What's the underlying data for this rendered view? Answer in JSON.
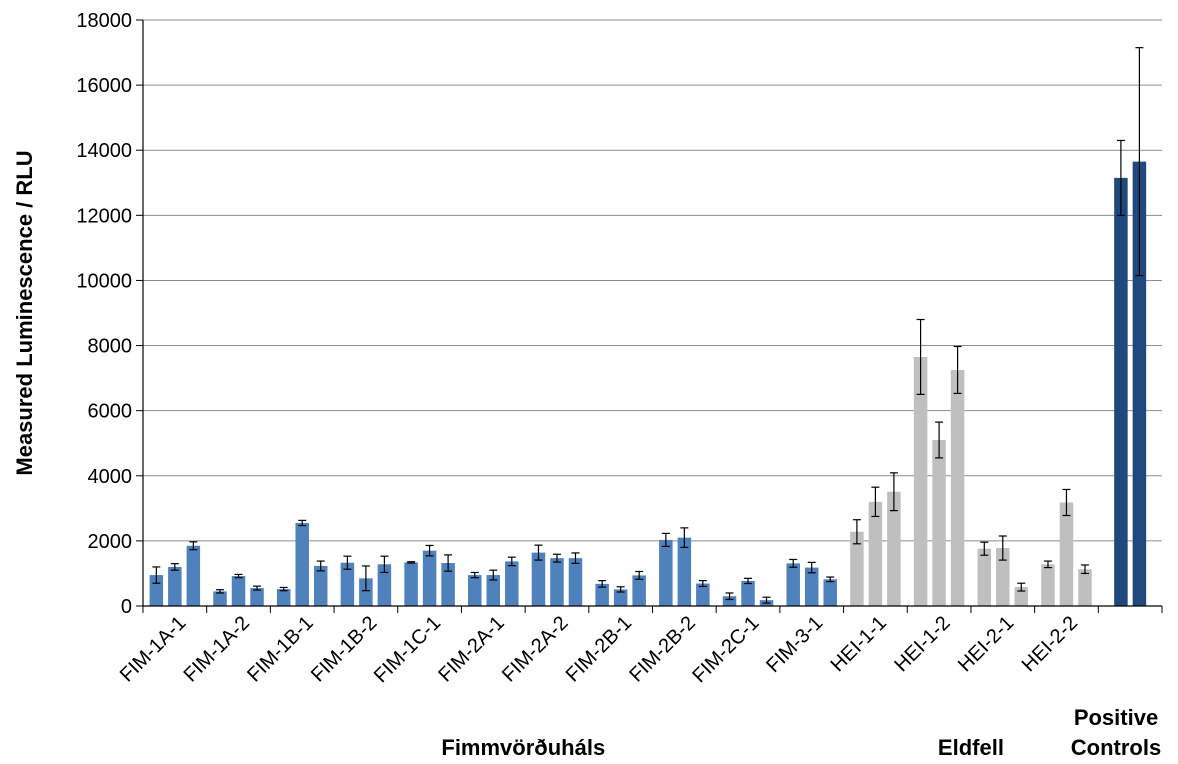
{
  "chart_data": {
    "type": "bar",
    "ylabel": "Measured Luminescence / RLU",
    "ylim": [
      0,
      18000
    ],
    "yticks": [
      0,
      2000,
      4000,
      6000,
      8000,
      10000,
      12000,
      14000,
      16000,
      18000
    ],
    "grid": true,
    "categories": [
      "FIM-1A-1",
      "FIM-1A-2",
      "FIM-1B-1",
      "FIM-1B-2",
      "FIM-1C-1",
      "FIM-2A-1",
      "FIM-2A-2",
      "FIM-2B-1",
      "FIM-2B-2",
      "FIM-2C-1",
      "FIM-3-1",
      "HEI-1-1",
      "HEI-1-2",
      "HEI-2-1",
      "HEI-2-2",
      ""
    ],
    "groups": [
      {
        "label": "Fimmvörðuháls",
        "from": 0,
        "to": 10,
        "color": "#4f81bd"
      },
      {
        "label": "Eldfell",
        "from": 11,
        "to": 14,
        "color": "#bfbfbf"
      },
      {
        "label_lines": [
          "Positive",
          "Controls"
        ],
        "from": 15,
        "to": 15,
        "color": "#1f497d"
      }
    ],
    "bars": [
      [
        {
          "value": 950,
          "error": 250
        },
        {
          "value": 1200,
          "error": 100
        },
        {
          "value": 1850,
          "error": 120
        }
      ],
      [
        {
          "value": 450,
          "error": 50
        },
        {
          "value": 920,
          "error": 50
        },
        {
          "value": 550,
          "error": 60
        }
      ],
      [
        {
          "value": 520,
          "error": 50
        },
        {
          "value": 2550,
          "error": 80
        },
        {
          "value": 1230,
          "error": 150
        }
      ],
      [
        {
          "value": 1330,
          "error": 200
        },
        {
          "value": 850,
          "error": 380
        },
        {
          "value": 1280,
          "error": 250
        }
      ],
      [
        {
          "value": 1340,
          "error": 20
        },
        {
          "value": 1700,
          "error": 160
        },
        {
          "value": 1320,
          "error": 250
        }
      ],
      [
        {
          "value": 950,
          "error": 80
        },
        {
          "value": 950,
          "error": 150
        },
        {
          "value": 1370,
          "error": 130
        }
      ],
      [
        {
          "value": 1640,
          "error": 230
        },
        {
          "value": 1470,
          "error": 120
        },
        {
          "value": 1470,
          "error": 160
        }
      ],
      [
        {
          "value": 680,
          "error": 100
        },
        {
          "value": 510,
          "error": 80
        },
        {
          "value": 940,
          "error": 120
        }
      ],
      [
        {
          "value": 2030,
          "error": 200
        },
        {
          "value": 2100,
          "error": 300
        },
        {
          "value": 690,
          "error": 90
        }
      ],
      [
        {
          "value": 300,
          "error": 100
        },
        {
          "value": 770,
          "error": 80
        },
        {
          "value": 180,
          "error": 90
        }
      ],
      [
        {
          "value": 1310,
          "error": 120
        },
        {
          "value": 1180,
          "error": 160
        },
        {
          "value": 820,
          "error": 70
        }
      ],
      [
        {
          "value": 2280,
          "error": 370
        },
        {
          "value": 3200,
          "error": 450
        },
        {
          "value": 3510,
          "error": 580
        }
      ],
      [
        {
          "value": 7650,
          "error": 1150
        },
        {
          "value": 5100,
          "error": 550
        },
        {
          "value": 7250,
          "error": 720
        }
      ],
      [
        {
          "value": 1760,
          "error": 200
        },
        {
          "value": 1780,
          "error": 370
        },
        {
          "value": 580,
          "error": 120
        }
      ],
      [
        {
          "value": 1280,
          "error": 100
        },
        {
          "value": 3180,
          "error": 400
        },
        {
          "value": 1130,
          "error": 130
        }
      ],
      [
        {
          "value": 13150,
          "error": 1150
        },
        {
          "value": 13650,
          "error": 3500
        }
      ]
    ]
  }
}
